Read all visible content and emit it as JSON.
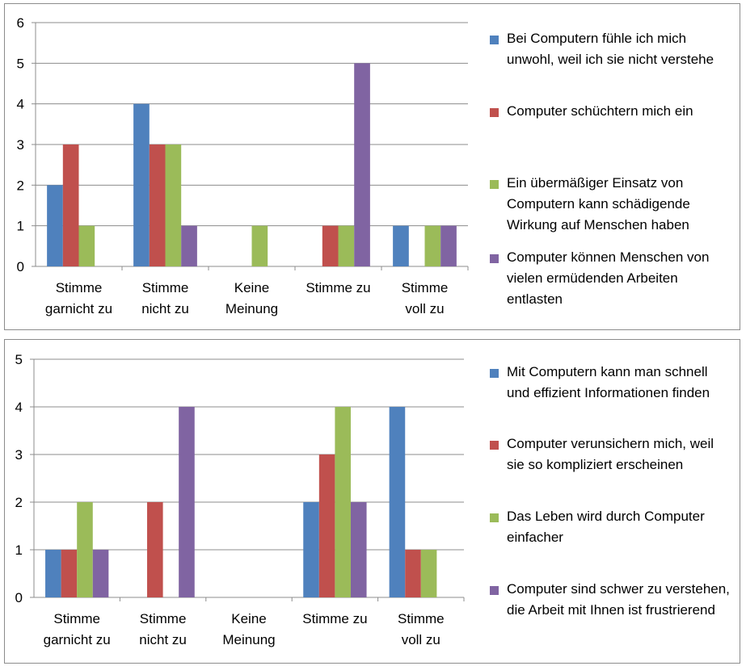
{
  "chart_data": [
    {
      "type": "bar",
      "categories": [
        "Stimme\ngarnicht zu",
        "Stimme\nnicht zu",
        "Keine\nMeinung",
        "Stimme zu",
        "Stimme\nvoll zu"
      ],
      "ylim": [
        0,
        6
      ],
      "yticks": [
        0,
        1,
        2,
        3,
        4,
        5,
        6
      ],
      "grid": true,
      "legend_position": "right",
      "series": [
        {
          "name": "Bei Computern fühle ich mich unwohl, weil ich sie nicht verstehe",
          "color": "#4F81BD",
          "values": [
            2,
            4,
            0,
            0,
            1
          ]
        },
        {
          "name": "Computer schüchtern mich ein",
          "color": "#C0504D",
          "values": [
            3,
            3,
            0,
            1,
            0
          ]
        },
        {
          "name": "Ein übermäßiger Einsatz von Computern kann schädigende Wirkung auf Menschen haben",
          "color": "#9BBB59",
          "values": [
            1,
            3,
            1,
            1,
            1
          ]
        },
        {
          "name": "Computer können Menschen von vielen ermüdenden Arbeiten entlasten",
          "color": "#8064A2",
          "values": [
            0,
            1,
            0,
            5,
            1
          ]
        }
      ]
    },
    {
      "type": "bar",
      "categories": [
        "Stimme\ngarnicht zu",
        "Stimme\nnicht zu",
        "Keine\nMeinung",
        "Stimme zu",
        "Stimme\nvoll zu"
      ],
      "ylim": [
        0,
        5
      ],
      "yticks": [
        0,
        1,
        2,
        3,
        4,
        5
      ],
      "grid": true,
      "legend_position": "right",
      "series": [
        {
          "name": "Mit Computern kann man schnell und effizient Informationen finden",
          "color": "#4F81BD",
          "values": [
            1,
            0,
            0,
            2,
            4
          ]
        },
        {
          "name": "Computer verunsichern mich, weil sie so kompliziert erscheinen",
          "color": "#C0504D",
          "values": [
            1,
            2,
            0,
            3,
            1
          ]
        },
        {
          "name": "Das Leben wird durch Computer einfacher",
          "color": "#9BBB59",
          "values": [
            2,
            0,
            0,
            4,
            1
          ]
        },
        {
          "name": "Computer sind schwer zu verstehen, die Arbeit mit Ihnen ist frustrierend",
          "color": "#8064A2",
          "values": [
            1,
            4,
            0,
            2,
            0
          ]
        }
      ]
    }
  ]
}
